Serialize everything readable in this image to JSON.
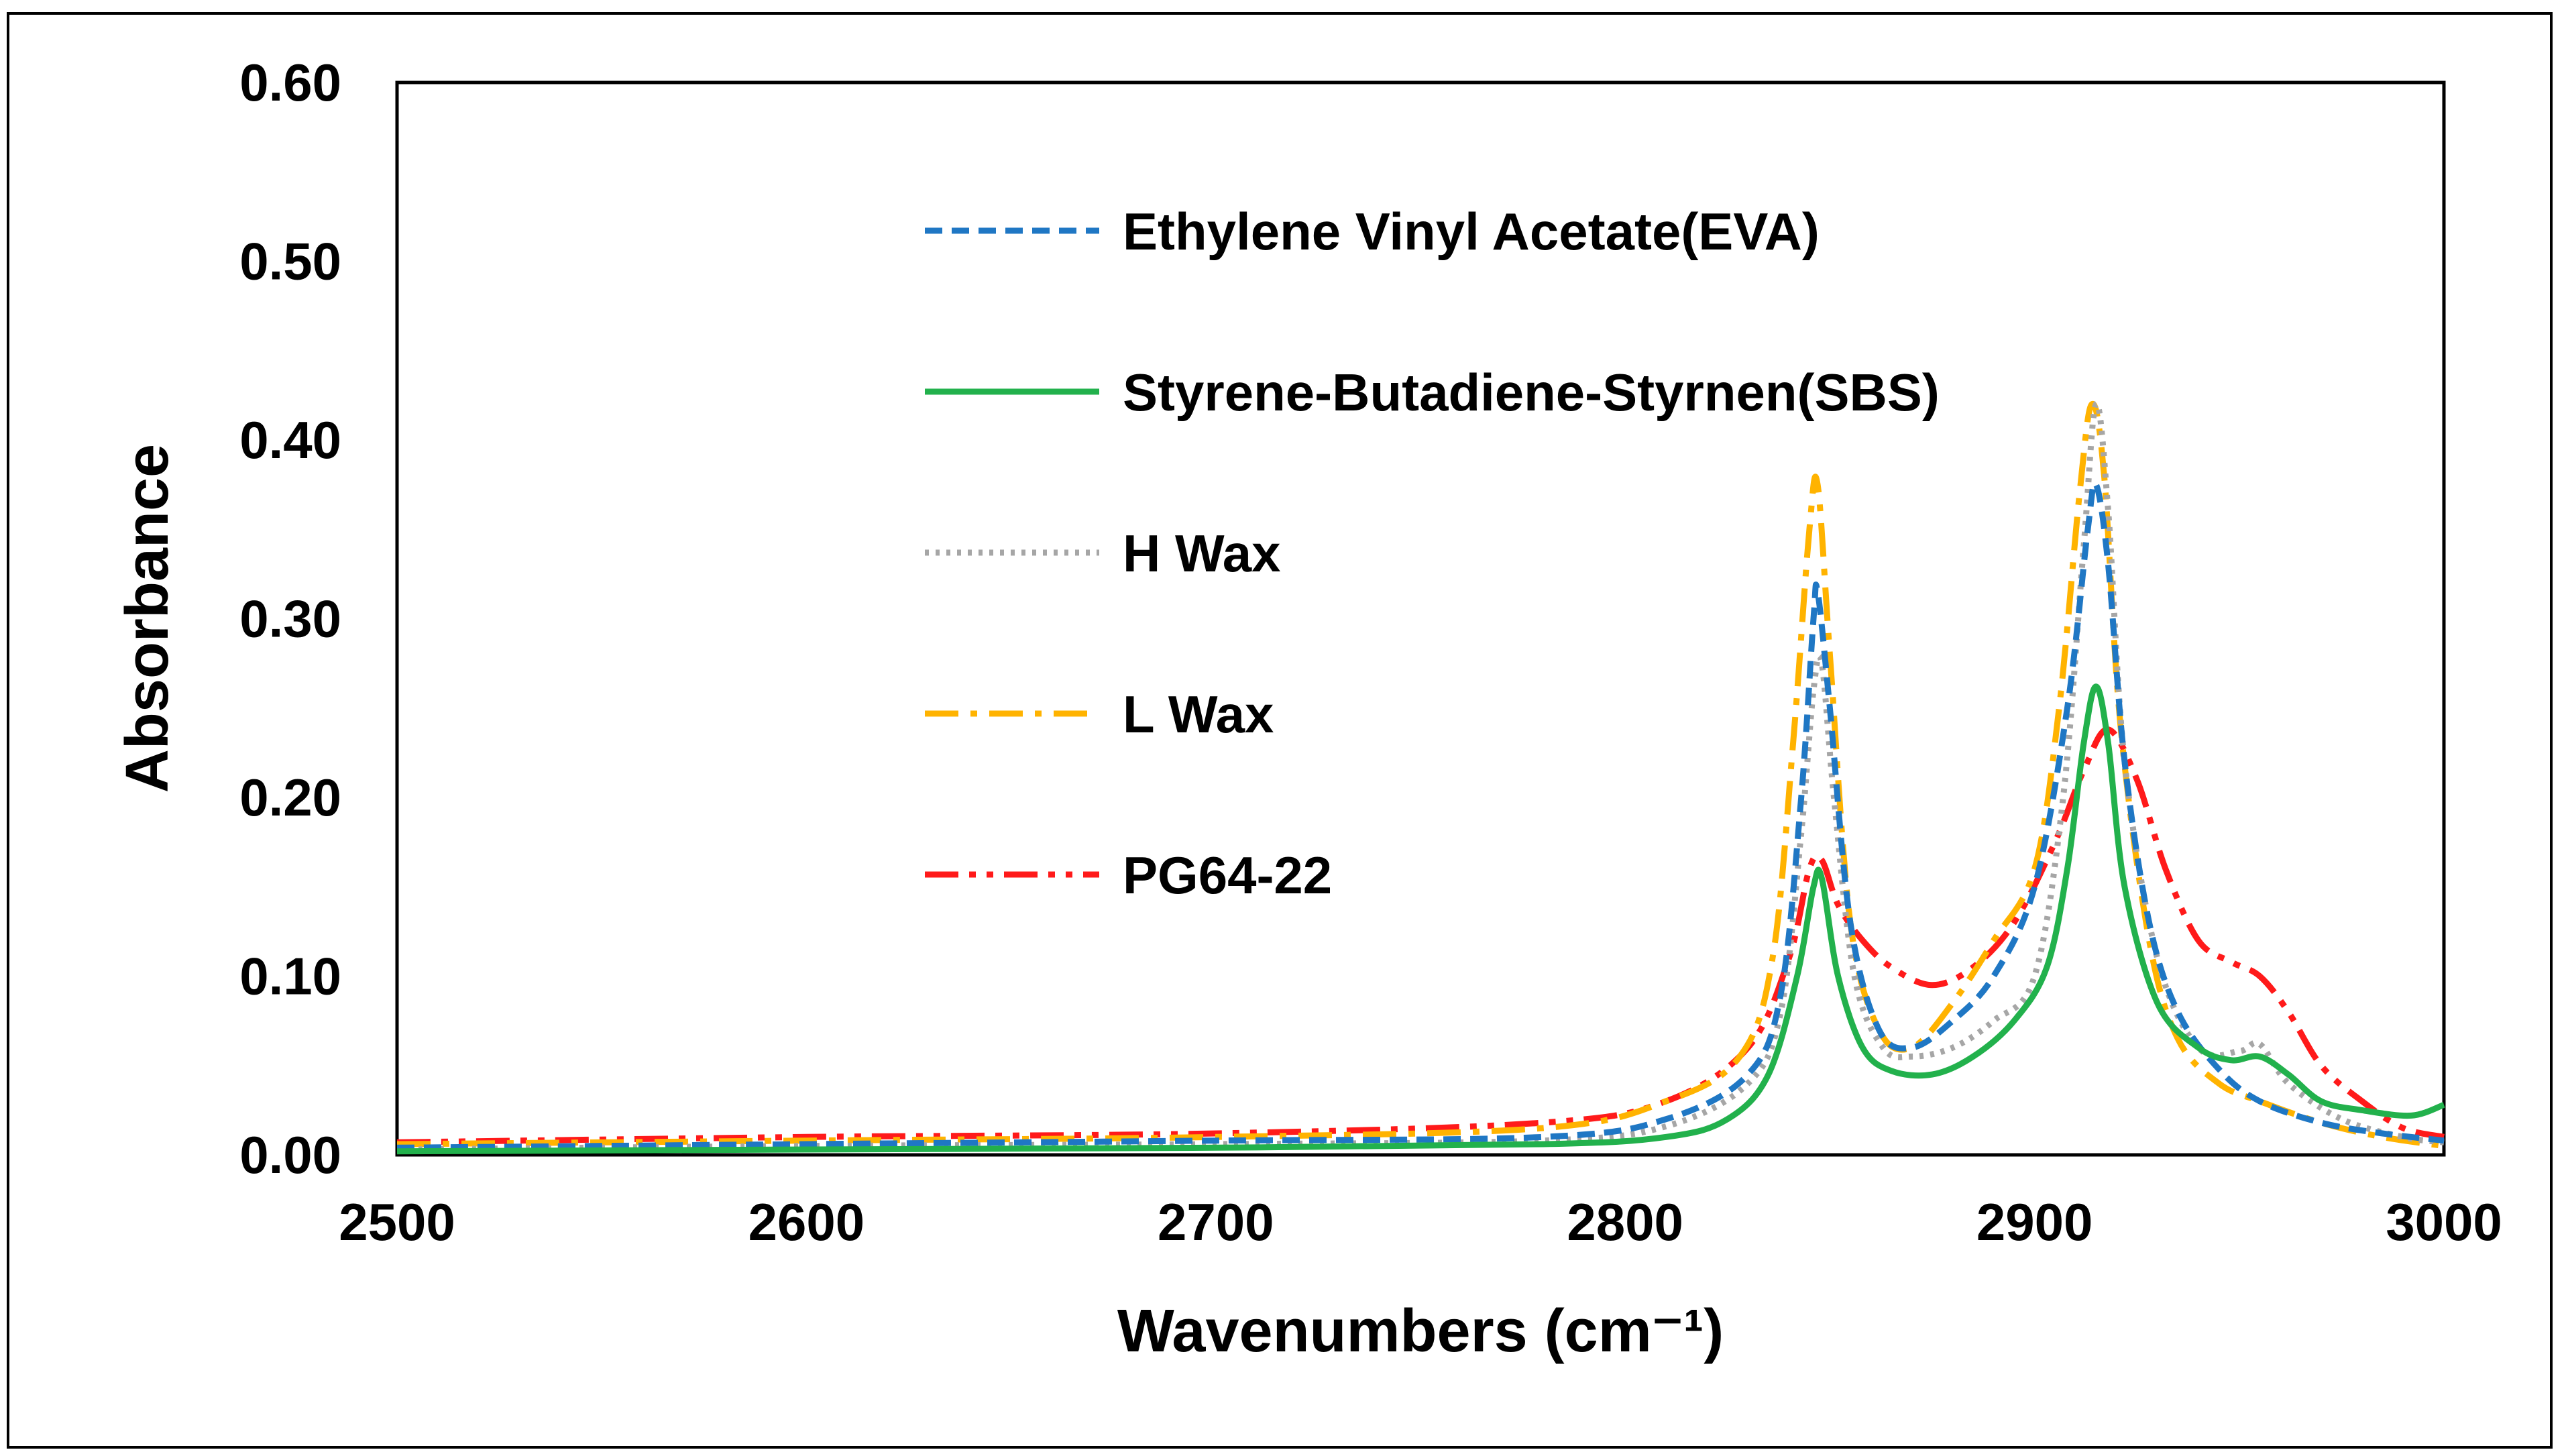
{
  "chart_data": {
    "type": "line",
    "xlabel": "Wavenumbers (cm⁻¹)",
    "ylabel": "Absorbance",
    "xlim": [
      2500,
      3000
    ],
    "ylim": [
      0,
      0.6
    ],
    "x_ticks": [
      "2500",
      "2600",
      "2700",
      "2800",
      "2900",
      "3000"
    ],
    "y_ticks": [
      "0.00",
      "0.10",
      "0.20",
      "0.30",
      "0.40",
      "0.50",
      "0.60"
    ],
    "grid": false,
    "legend_position": "top-center",
    "series": [
      {
        "name": "Ethylene Vinyl Acetate(EVA)",
        "color": "#1f77c4",
        "dash": "dash",
        "points": [
          [
            2500,
            0.004
          ],
          [
            2600,
            0.006
          ],
          [
            2700,
            0.008
          ],
          [
            2780,
            0.01
          ],
          [
            2810,
            0.02
          ],
          [
            2830,
            0.045
          ],
          [
            2838,
            0.09
          ],
          [
            2843,
            0.2
          ],
          [
            2846,
            0.3
          ],
          [
            2847,
            0.315
          ],
          [
            2850,
            0.25
          ],
          [
            2855,
            0.13
          ],
          [
            2862,
            0.07
          ],
          [
            2870,
            0.06
          ],
          [
            2880,
            0.075
          ],
          [
            2890,
            0.1
          ],
          [
            2900,
            0.15
          ],
          [
            2908,
            0.25
          ],
          [
            2913,
            0.35
          ],
          [
            2915,
            0.375
          ],
          [
            2918,
            0.33
          ],
          [
            2922,
            0.22
          ],
          [
            2928,
            0.13
          ],
          [
            2935,
            0.08
          ],
          [
            2945,
            0.048
          ],
          [
            2955,
            0.03
          ],
          [
            2970,
            0.018
          ],
          [
            2985,
            0.012
          ],
          [
            3000,
            0.008
          ]
        ]
      },
      {
        "name": "Styrene-Butadiene-Styrnen(SBS)",
        "color": "#22b14c",
        "dash": "solid",
        "points": [
          [
            2500,
            0.002
          ],
          [
            2600,
            0.003
          ],
          [
            2700,
            0.004
          ],
          [
            2780,
            0.006
          ],
          [
            2810,
            0.01
          ],
          [
            2825,
            0.02
          ],
          [
            2835,
            0.045
          ],
          [
            2842,
            0.1
          ],
          [
            2846,
            0.15
          ],
          [
            2848,
            0.155
          ],
          [
            2852,
            0.1
          ],
          [
            2858,
            0.06
          ],
          [
            2865,
            0.047
          ],
          [
            2875,
            0.045
          ],
          [
            2885,
            0.055
          ],
          [
            2895,
            0.075
          ],
          [
            2903,
            0.105
          ],
          [
            2908,
            0.16
          ],
          [
            2912,
            0.23
          ],
          [
            2915,
            0.262
          ],
          [
            2918,
            0.23
          ],
          [
            2922,
            0.15
          ],
          [
            2930,
            0.085
          ],
          [
            2940,
            0.06
          ],
          [
            2948,
            0.053
          ],
          [
            2955,
            0.055
          ],
          [
            2962,
            0.045
          ],
          [
            2970,
            0.03
          ],
          [
            2980,
            0.025
          ],
          [
            2992,
            0.022
          ],
          [
            3000,
            0.028
          ]
        ]
      },
      {
        "name": "H Wax",
        "color": "#a6a6a6",
        "dash": "dot",
        "points": [
          [
            2500,
            0.003
          ],
          [
            2600,
            0.005
          ],
          [
            2700,
            0.006
          ],
          [
            2780,
            0.008
          ],
          [
            2810,
            0.016
          ],
          [
            2830,
            0.04
          ],
          [
            2838,
            0.08
          ],
          [
            2843,
            0.18
          ],
          [
            2846,
            0.26
          ],
          [
            2848,
            0.275
          ],
          [
            2851,
            0.2
          ],
          [
            2856,
            0.1
          ],
          [
            2863,
            0.06
          ],
          [
            2870,
            0.055
          ],
          [
            2880,
            0.06
          ],
          [
            2890,
            0.075
          ],
          [
            2900,
            0.1
          ],
          [
            2907,
            0.2
          ],
          [
            2912,
            0.34
          ],
          [
            2915,
            0.42
          ],
          [
            2918,
            0.36
          ],
          [
            2922,
            0.22
          ],
          [
            2930,
            0.11
          ],
          [
            2940,
            0.06
          ],
          [
            2950,
            0.058
          ],
          [
            2955,
            0.062
          ],
          [
            2962,
            0.04
          ],
          [
            2975,
            0.02
          ],
          [
            2990,
            0.01
          ],
          [
            3000,
            0.007
          ]
        ]
      },
      {
        "name": "L Wax",
        "color": "#ffb300",
        "dash": "dashdot",
        "points": [
          [
            2500,
            0.006
          ],
          [
            2600,
            0.008
          ],
          [
            2700,
            0.01
          ],
          [
            2780,
            0.015
          ],
          [
            2810,
            0.03
          ],
          [
            2828,
            0.055
          ],
          [
            2836,
            0.11
          ],
          [
            2841,
            0.23
          ],
          [
            2845,
            0.35
          ],
          [
            2847,
            0.375
          ],
          [
            2850,
            0.28
          ],
          [
            2855,
            0.13
          ],
          [
            2862,
            0.07
          ],
          [
            2870,
            0.06
          ],
          [
            2880,
            0.085
          ],
          [
            2890,
            0.12
          ],
          [
            2900,
            0.16
          ],
          [
            2906,
            0.25
          ],
          [
            2911,
            0.37
          ],
          [
            2914,
            0.42
          ],
          [
            2917,
            0.38
          ],
          [
            2921,
            0.24
          ],
          [
            2928,
            0.12
          ],
          [
            2935,
            0.065
          ],
          [
            2945,
            0.04
          ],
          [
            2955,
            0.03
          ],
          [
            2970,
            0.018
          ],
          [
            2985,
            0.01
          ],
          [
            3000,
            0.005
          ]
        ]
      },
      {
        "name": "PG64-22",
        "color": "#ff1a1a",
        "dash": "dashdotdot",
        "points": [
          [
            2500,
            0.007
          ],
          [
            2600,
            0.01
          ],
          [
            2700,
            0.012
          ],
          [
            2780,
            0.018
          ],
          [
            2810,
            0.03
          ],
          [
            2830,
            0.06
          ],
          [
            2840,
            0.11
          ],
          [
            2845,
            0.16
          ],
          [
            2848,
            0.165
          ],
          [
            2852,
            0.14
          ],
          [
            2858,
            0.12
          ],
          [
            2865,
            0.105
          ],
          [
            2875,
            0.095
          ],
          [
            2885,
            0.105
          ],
          [
            2895,
            0.13
          ],
          [
            2905,
            0.175
          ],
          [
            2912,
            0.215
          ],
          [
            2918,
            0.238
          ],
          [
            2925,
            0.21
          ],
          [
            2932,
            0.16
          ],
          [
            2940,
            0.12
          ],
          [
            2948,
            0.108
          ],
          [
            2955,
            0.1
          ],
          [
            2962,
            0.08
          ],
          [
            2970,
            0.05
          ],
          [
            2980,
            0.03
          ],
          [
            2990,
            0.015
          ],
          [
            3000,
            0.01
          ]
        ]
      }
    ]
  }
}
